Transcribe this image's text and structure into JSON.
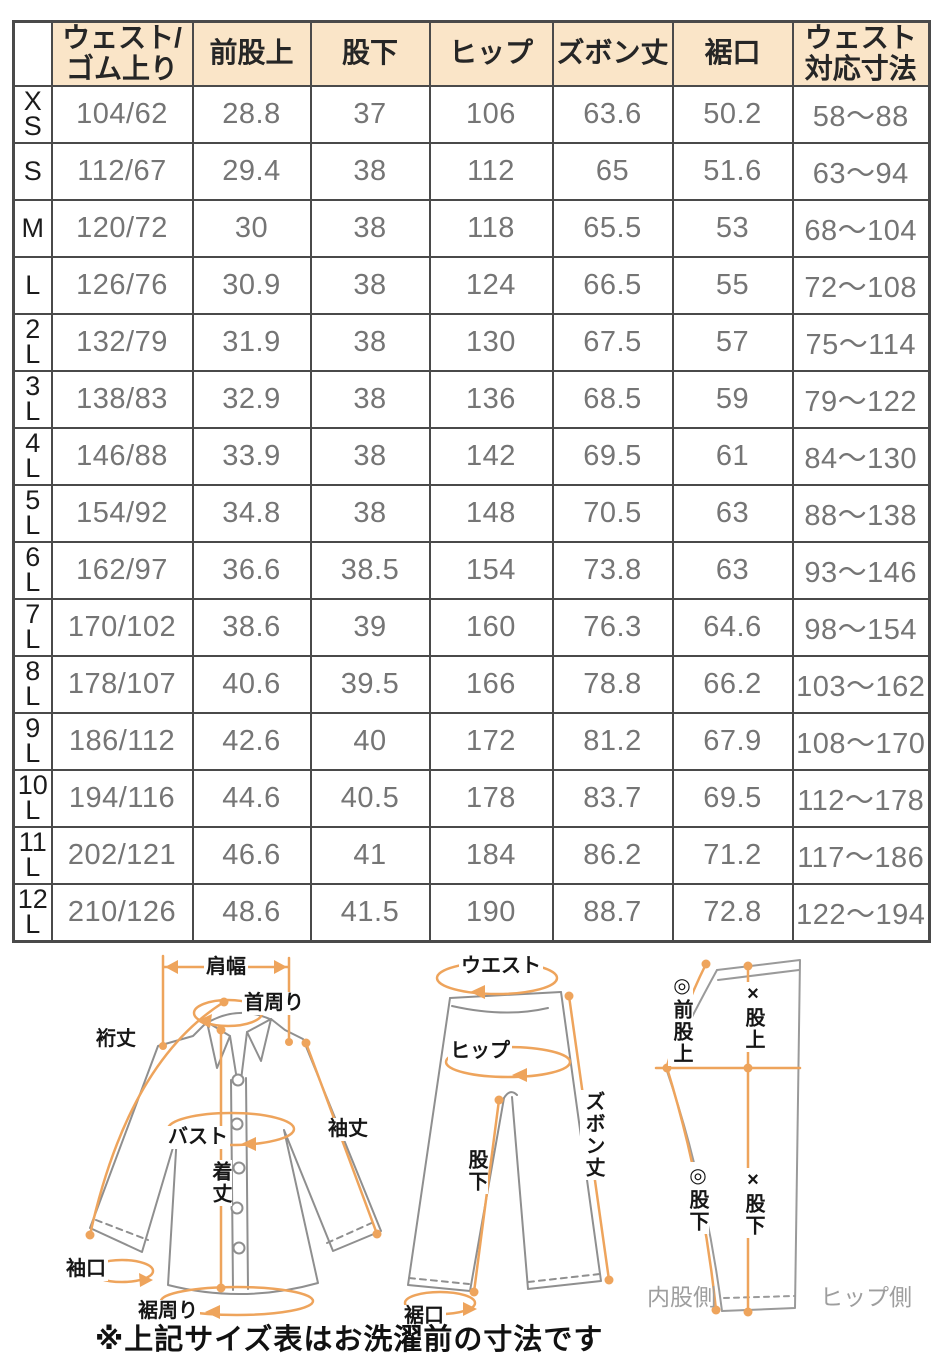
{
  "table": {
    "columns": [
      "",
      "ウェスト/\nゴム上り",
      "前股上",
      "股下",
      "ヒップ",
      "ズボン丈",
      "裾口",
      "ウェスト\n対応寸法"
    ],
    "rows": [
      {
        "size": "X\nS",
        "cells": [
          "104/62",
          "28.8",
          "37",
          "106",
          "63.6",
          "50.2",
          "58〜88"
        ]
      },
      {
        "size": "S",
        "cells": [
          "112/67",
          "29.4",
          "38",
          "112",
          "65",
          "51.6",
          "63〜94"
        ]
      },
      {
        "size": "M",
        "cells": [
          "120/72",
          "30",
          "38",
          "118",
          "65.5",
          "53",
          "68〜104"
        ]
      },
      {
        "size": "L",
        "cells": [
          "126/76",
          "30.9",
          "38",
          "124",
          "66.5",
          "55",
          "72〜108"
        ]
      },
      {
        "size": "2\nL",
        "cells": [
          "132/79",
          "31.9",
          "38",
          "130",
          "67.5",
          "57",
          "75〜114"
        ]
      },
      {
        "size": "3\nL",
        "cells": [
          "138/83",
          "32.9",
          "38",
          "136",
          "68.5",
          "59",
          "79〜122"
        ]
      },
      {
        "size": "4\nL",
        "cells": [
          "146/88",
          "33.9",
          "38",
          "142",
          "69.5",
          "61",
          "84〜130"
        ]
      },
      {
        "size": "5\nL",
        "cells": [
          "154/92",
          "34.8",
          "38",
          "148",
          "70.5",
          "63",
          "88〜138"
        ]
      },
      {
        "size": "6\nL",
        "cells": [
          "162/97",
          "36.6",
          "38.5",
          "154",
          "73.8",
          "63",
          "93〜146"
        ]
      },
      {
        "size": "7\nL",
        "cells": [
          "170/102",
          "38.6",
          "39",
          "160",
          "76.3",
          "64.6",
          "98〜154"
        ]
      },
      {
        "size": "8\nL",
        "cells": [
          "178/107",
          "40.6",
          "39.5",
          "166",
          "78.8",
          "66.2",
          "103〜162"
        ]
      },
      {
        "size": "9\nL",
        "cells": [
          "186/112",
          "42.6",
          "40",
          "172",
          "81.2",
          "67.9",
          "108〜170"
        ]
      },
      {
        "size": "10\nL",
        "cells": [
          "194/116",
          "44.6",
          "40.5",
          "178",
          "83.7",
          "69.5",
          "112〜178"
        ]
      },
      {
        "size": "11\nL",
        "cells": [
          "202/121",
          "46.6",
          "41",
          "184",
          "86.2",
          "71.2",
          "117〜186"
        ]
      },
      {
        "size": "12\nL",
        "cells": [
          "210/126",
          "48.6",
          "41.5",
          "190",
          "88.7",
          "72.8",
          "122〜194"
        ]
      }
    ]
  },
  "diagrams": {
    "shirt": {
      "labels": {
        "shoulder_width": "肩幅",
        "neck": "首周り",
        "yuki": "裄丈",
        "bust": "バスト",
        "sleeve_length": "袖丈",
        "body_length": "着丈",
        "cuff": "袖口",
        "hem_around": "裾周り"
      }
    },
    "pants": {
      "labels": {
        "waist": "ウエスト",
        "hip": "ヒップ",
        "pants_length": "ズボン丈",
        "inseam": "股下",
        "hem": "裾口"
      }
    },
    "side": {
      "labels": {
        "front_rise": "◎前股上",
        "rise_x": "×股上",
        "inseam_o": "◎股下",
        "inseam_x": "×股下",
        "inner_side": "内股側",
        "hip_side": "ヒップ側"
      }
    }
  },
  "note": "※上記サイズ表はお洗濯前の寸法です",
  "colors": {
    "header_bg": "#fae5c8",
    "accent_orange": "#eea45c",
    "grid_border": "#4a4a4a",
    "value_text": "#757575",
    "outline_gray": "#8f8f8f"
  }
}
